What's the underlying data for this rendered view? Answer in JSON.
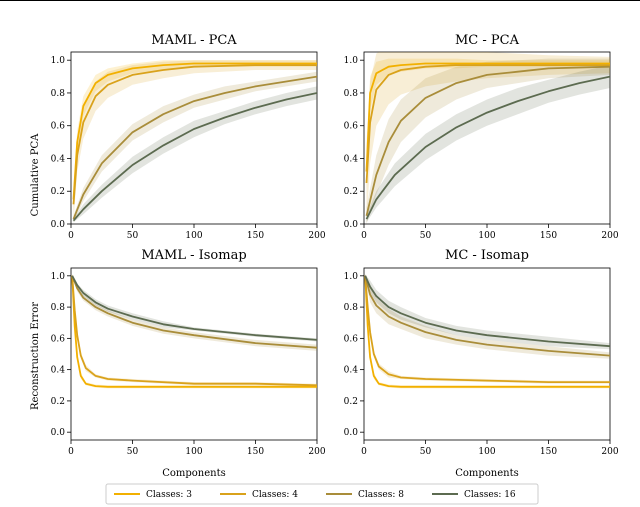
{
  "chart_data": [
    {
      "id": "maml_pca",
      "type": "line",
      "title": "MAML - PCA",
      "xlabel": "",
      "ylabel": "Cumulative PCA",
      "xlim": [
        0,
        200
      ],
      "ylim": [
        0,
        1.05
      ],
      "xticks": [
        "0",
        "50",
        "100",
        "150",
        "200"
      ],
      "yticks": [
        "0.0",
        "0.2",
        "0.4",
        "0.6",
        "0.8",
        "1.0"
      ],
      "series": [
        {
          "name": "Classes: 3",
          "color": "#f2b000",
          "x": [
            2,
            5,
            10,
            20,
            30,
            50,
            75,
            100,
            150,
            200
          ],
          "y": [
            0.15,
            0.5,
            0.72,
            0.86,
            0.91,
            0.95,
            0.97,
            0.98,
            0.98,
            0.98
          ],
          "band": [
            0.08,
            0.07,
            0.06,
            0.05,
            0.04,
            0.03,
            0.03,
            0.02,
            0.02,
            0.02
          ]
        },
        {
          "name": "Classes: 4",
          "color": "#d9a21b",
          "x": [
            2,
            5,
            10,
            20,
            30,
            50,
            75,
            100,
            150,
            200
          ],
          "y": [
            0.12,
            0.42,
            0.62,
            0.78,
            0.85,
            0.91,
            0.94,
            0.96,
            0.97,
            0.97
          ],
          "band": [
            0.1,
            0.1,
            0.1,
            0.09,
            0.08,
            0.06,
            0.05,
            0.04,
            0.03,
            0.03
          ]
        },
        {
          "name": "Classes: 8",
          "color": "#a98d3a",
          "x": [
            2,
            10,
            25,
            50,
            75,
            100,
            125,
            150,
            175,
            200
          ],
          "y": [
            0.03,
            0.18,
            0.37,
            0.56,
            0.67,
            0.75,
            0.8,
            0.84,
            0.87,
            0.9
          ],
          "band": [
            0.02,
            0.04,
            0.05,
            0.05,
            0.05,
            0.04,
            0.04,
            0.03,
            0.03,
            0.03
          ]
        },
        {
          "name": "Classes: 16",
          "color": "#5c6b50",
          "x": [
            2,
            10,
            25,
            50,
            75,
            100,
            125,
            150,
            175,
            200
          ],
          "y": [
            0.02,
            0.09,
            0.2,
            0.36,
            0.48,
            0.58,
            0.65,
            0.71,
            0.76,
            0.8
          ],
          "band": [
            0.01,
            0.03,
            0.04,
            0.05,
            0.05,
            0.05,
            0.04,
            0.04,
            0.04,
            0.04
          ]
        }
      ]
    },
    {
      "id": "mc_pca",
      "type": "line",
      "title": "MC - PCA",
      "xlabel": "",
      "ylabel": "",
      "xlim": [
        0,
        200
      ],
      "ylim": [
        0,
        1.05
      ],
      "xticks": [
        "0",
        "50",
        "100",
        "150",
        "200"
      ],
      "yticks": [
        "0.0",
        "0.2",
        "0.4",
        "0.6",
        "0.8",
        "1.0"
      ],
      "series": [
        {
          "name": "Classes: 3",
          "color": "#f2b000",
          "x": [
            2,
            5,
            10,
            20,
            30,
            50,
            75,
            100,
            150,
            200
          ],
          "y": [
            0.32,
            0.8,
            0.92,
            0.96,
            0.97,
            0.98,
            0.98,
            0.98,
            0.98,
            0.98
          ],
          "band": [
            0.12,
            0.1,
            0.07,
            0.05,
            0.04,
            0.03,
            0.03,
            0.02,
            0.02,
            0.02
          ]
        },
        {
          "name": "Classes: 4",
          "color": "#d9a21b",
          "x": [
            2,
            5,
            10,
            20,
            30,
            50,
            75,
            100,
            150,
            200
          ],
          "y": [
            0.25,
            0.62,
            0.82,
            0.91,
            0.94,
            0.96,
            0.97,
            0.97,
            0.97,
            0.97
          ],
          "band": [
            0.25,
            0.25,
            0.22,
            0.18,
            0.15,
            0.12,
            0.1,
            0.08,
            0.06,
            0.05
          ]
        },
        {
          "name": "Classes: 8",
          "color": "#a98d3a",
          "x": [
            2,
            10,
            20,
            30,
            50,
            75,
            100,
            125,
            150,
            200
          ],
          "y": [
            0.05,
            0.3,
            0.5,
            0.63,
            0.77,
            0.86,
            0.91,
            0.93,
            0.95,
            0.96
          ],
          "band": [
            0.05,
            0.12,
            0.14,
            0.13,
            0.12,
            0.1,
            0.08,
            0.07,
            0.06,
            0.05
          ]
        },
        {
          "name": "Classes: 16",
          "color": "#5c6b50",
          "x": [
            2,
            10,
            25,
            50,
            75,
            100,
            125,
            150,
            175,
            200
          ],
          "y": [
            0.03,
            0.15,
            0.3,
            0.47,
            0.59,
            0.68,
            0.75,
            0.81,
            0.86,
            0.9
          ],
          "band": [
            0.02,
            0.05,
            0.07,
            0.08,
            0.08,
            0.08,
            0.08,
            0.07,
            0.07,
            0.07
          ]
        }
      ]
    },
    {
      "id": "maml_isomap",
      "type": "line",
      "title": "MAML - Isomap",
      "xlabel": "Components",
      "ylabel": "Reconstruction Error",
      "xlim": [
        0,
        200
      ],
      "ylim": [
        -0.05,
        1.05
      ],
      "xticks": [
        "0",
        "50",
        "100",
        "150",
        "200"
      ],
      "yticks": [
        "0.0",
        "0.2",
        "0.4",
        "0.6",
        "0.8",
        "1.0"
      ],
      "series": [
        {
          "name": "Classes: 3",
          "color": "#f2b000",
          "x": [
            1,
            3,
            5,
            8,
            12,
            20,
            30,
            50,
            100,
            150,
            200
          ],
          "y": [
            1.0,
            0.68,
            0.48,
            0.36,
            0.31,
            0.295,
            0.29,
            0.29,
            0.29,
            0.29,
            0.29
          ],
          "band": [
            0.01,
            0.02,
            0.02,
            0.02,
            0.01,
            0.01,
            0.01,
            0.01,
            0.01,
            0.01,
            0.01
          ]
        },
        {
          "name": "Classes: 4",
          "color": "#d9a21b",
          "x": [
            1,
            3,
            5,
            8,
            12,
            20,
            30,
            50,
            100,
            150,
            200
          ],
          "y": [
            1.0,
            0.78,
            0.62,
            0.49,
            0.41,
            0.36,
            0.34,
            0.33,
            0.31,
            0.31,
            0.3
          ],
          "band": [
            0.01,
            0.02,
            0.02,
            0.02,
            0.02,
            0.01,
            0.01,
            0.01,
            0.01,
            0.01,
            0.01
          ]
        },
        {
          "name": "Classes: 8",
          "color": "#a98d3a",
          "x": [
            1,
            5,
            10,
            20,
            30,
            50,
            75,
            100,
            150,
            200
          ],
          "y": [
            1.0,
            0.92,
            0.86,
            0.8,
            0.76,
            0.7,
            0.65,
            0.62,
            0.57,
            0.54
          ],
          "band": [
            0.01,
            0.02,
            0.02,
            0.02,
            0.02,
            0.02,
            0.02,
            0.02,
            0.02,
            0.02
          ]
        },
        {
          "name": "Classes: 16",
          "color": "#5c6b50",
          "x": [
            1,
            5,
            10,
            20,
            30,
            50,
            75,
            100,
            150,
            200
          ],
          "y": [
            1.0,
            0.94,
            0.89,
            0.83,
            0.79,
            0.74,
            0.69,
            0.66,
            0.62,
            0.59
          ],
          "band": [
            0.01,
            0.01,
            0.02,
            0.02,
            0.02,
            0.02,
            0.02,
            0.01,
            0.01,
            0.01
          ]
        }
      ]
    },
    {
      "id": "mc_isomap",
      "type": "line",
      "title": "MC - Isomap",
      "xlabel": "Components",
      "ylabel": "",
      "xlim": [
        0,
        200
      ],
      "ylim": [
        -0.05,
        1.05
      ],
      "xticks": [
        "0",
        "50",
        "100",
        "150",
        "200"
      ],
      "yticks": [
        "0.0",
        "0.2",
        "0.4",
        "0.6",
        "0.8",
        "1.0"
      ],
      "series": [
        {
          "name": "Classes: 3",
          "color": "#f2b000",
          "x": [
            1,
            3,
            5,
            8,
            12,
            20,
            30,
            50,
            100,
            150,
            200
          ],
          "y": [
            1.0,
            0.68,
            0.48,
            0.36,
            0.31,
            0.295,
            0.29,
            0.29,
            0.29,
            0.29,
            0.29
          ],
          "band": [
            0.01,
            0.02,
            0.02,
            0.02,
            0.01,
            0.01,
            0.01,
            0.01,
            0.01,
            0.01,
            0.01
          ]
        },
        {
          "name": "Classes: 4",
          "color": "#d9a21b",
          "x": [
            1,
            3,
            5,
            8,
            12,
            20,
            30,
            50,
            100,
            150,
            200
          ],
          "y": [
            1.0,
            0.8,
            0.64,
            0.5,
            0.42,
            0.37,
            0.35,
            0.34,
            0.33,
            0.32,
            0.32
          ],
          "band": [
            0.01,
            0.02,
            0.02,
            0.02,
            0.02,
            0.02,
            0.01,
            0.01,
            0.01,
            0.01,
            0.01
          ]
        },
        {
          "name": "Classes: 8",
          "color": "#a98d3a",
          "x": [
            1,
            5,
            10,
            20,
            30,
            50,
            75,
            100,
            150,
            200
          ],
          "y": [
            1.0,
            0.88,
            0.81,
            0.74,
            0.7,
            0.64,
            0.59,
            0.56,
            0.52,
            0.49
          ],
          "band": [
            0.01,
            0.05,
            0.05,
            0.05,
            0.04,
            0.04,
            0.03,
            0.03,
            0.03,
            0.02
          ]
        },
        {
          "name": "Classes: 16",
          "color": "#5c6b50",
          "x": [
            1,
            5,
            10,
            20,
            30,
            50,
            75,
            100,
            150,
            200
          ],
          "y": [
            1.0,
            0.93,
            0.87,
            0.8,
            0.76,
            0.7,
            0.65,
            0.62,
            0.58,
            0.55
          ],
          "band": [
            0.01,
            0.04,
            0.04,
            0.04,
            0.04,
            0.03,
            0.03,
            0.03,
            0.03,
            0.02
          ]
        }
      ]
    }
  ],
  "legend": {
    "position": "bottom-center",
    "items": [
      {
        "label": "Classes: 3",
        "color": "#f2b000"
      },
      {
        "label": "Classes: 4",
        "color": "#d9a21b"
      },
      {
        "label": "Classes: 8",
        "color": "#a98d3a"
      },
      {
        "label": "Classes: 16",
        "color": "#5c6b50"
      }
    ]
  }
}
